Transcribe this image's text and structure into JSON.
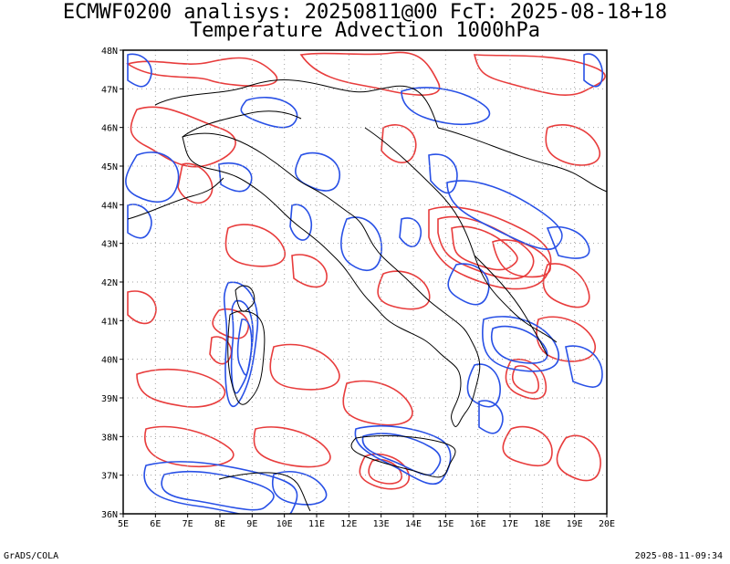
{
  "title": {
    "line1": "ECMWF0200 analisys: 20250811@00 FcT: 2025-08-18+18",
    "line2": "Temperature Advection 1000hPa"
  },
  "footer": {
    "left": "GrADS/COLA",
    "right": "2025-08-11-09:34"
  },
  "map": {
    "x_ticks": [
      "5E",
      "6E",
      "7E",
      "8E",
      "9E",
      "10E",
      "11E",
      "12E",
      "13E",
      "14E",
      "15E",
      "16E",
      "17E",
      "18E",
      "19E",
      "20E"
    ],
    "y_ticks": [
      "48N",
      "47N",
      "46N",
      "45N",
      "44N",
      "43N",
      "42N",
      "41N",
      "40N",
      "39N",
      "38N",
      "37N",
      "36N"
    ],
    "lon_range": [
      5,
      20
    ],
    "lat_range": [
      36,
      48
    ],
    "colors": {
      "warm_advection": "#e83c3c",
      "cold_advection": "#2850e6",
      "coastline": "#000000",
      "grid": "#a0a0a0"
    },
    "grid": true
  }
}
